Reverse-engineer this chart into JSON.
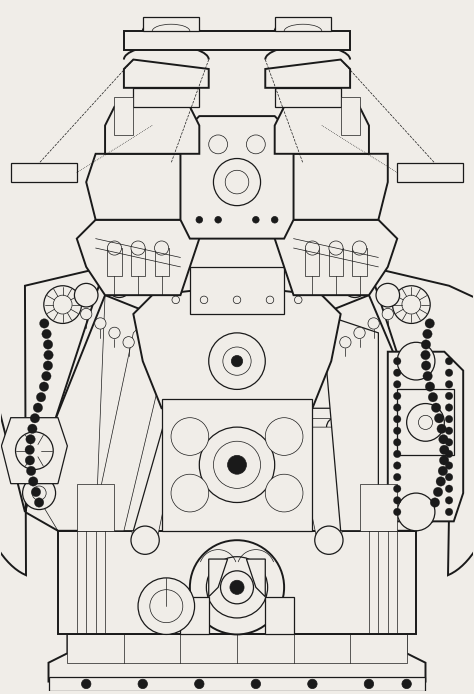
{
  "background_color": "#f0ede8",
  "line_color": "#1a1a1a",
  "lw_thin": 0.5,
  "lw_med": 0.9,
  "lw_thick": 1.4,
  "fig_width": 4.74,
  "fig_height": 6.94,
  "dpi": 100
}
